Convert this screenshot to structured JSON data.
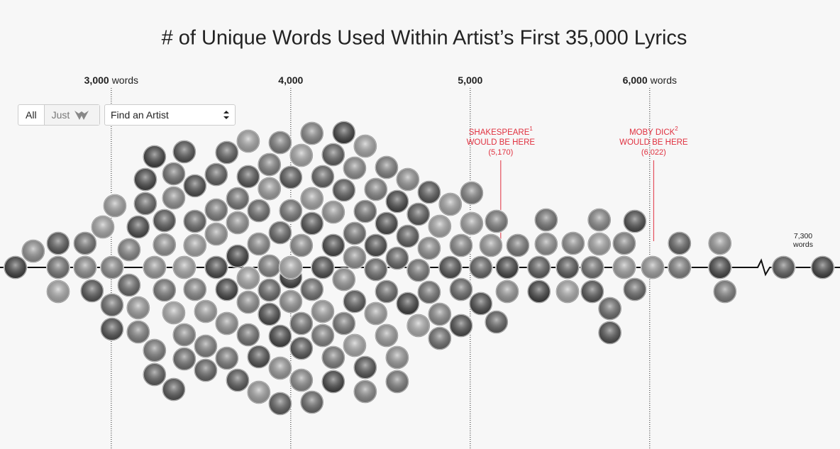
{
  "controls": {
    "all": "All",
    "just": "Just",
    "select": "Find an Artist"
  },
  "chart_data": {
    "type": "beeswarm",
    "title": "# of Unique Words Used Within Artist’s First 35,000 Lyrics",
    "xlim": [
      2380,
      6570
    ],
    "break_xlim": [
      7130,
      7470
    ],
    "xticks": [
      {
        "value": 3000,
        "label": "3,000",
        "unit": "words"
      },
      {
        "value": 4000,
        "label": "4,000"
      },
      {
        "value": 5000,
        "label": "5,000"
      },
      {
        "value": 6000,
        "label": "6,000",
        "unit": "words"
      }
    ],
    "annotations": [
      {
        "name": "SHAKESPEARE",
        "footnote": "1",
        "text": "WOULD BE HERE",
        "value": 5170,
        "value_label": "(5,170)"
      },
      {
        "name": "MOBY DICK",
        "footnote": "2",
        "text": "WOULD BE HERE",
        "value": 6022,
        "value_label": "(6,022)"
      }
    ],
    "break_annotation": {
      "value": 7300,
      "label": "7,300",
      "unit": "words"
    },
    "annotation_color": "#e0303f",
    "values": [
      2466,
      2565,
      2704,
      2704,
      2704,
      2854,
      2854,
      2893,
      2953,
      3004,
      3004,
      3004,
      3020,
      3099,
      3099,
      3150,
      3150,
      3150,
      3190,
      3190,
      3241,
      3241,
      3241,
      3241,
      3296,
      3296,
      3296,
      3348,
      3348,
      3348,
      3348,
      3407,
      3407,
      3407,
      3407,
      3466,
      3466,
      3466,
      3466,
      3526,
      3526,
      3526,
      3585,
      3585,
      3585,
      3585,
      3644,
      3644,
      3644,
      3644,
      3704,
      3704,
      3704,
      3704,
      3763,
      3763,
      3763,
      3763,
      3763,
      3822,
      3822,
      3822,
      3822,
      3881,
      3881,
      3881,
      3881,
      3881,
      3941,
      3941,
      3941,
      3941,
      3941,
      4000,
      4000,
      4000,
      4000,
      4000,
      4059,
      4059,
      4059,
      4059,
      4059,
      4118,
      4118,
      4118,
      4118,
      4118,
      4178,
      4178,
      4178,
      4178,
      4237,
      4237,
      4237,
      4237,
      4237,
      4296,
      4296,
      4296,
      4296,
      4356,
      4356,
      4356,
      4356,
      4356,
      4415,
      4415,
      4415,
      4415,
      4474,
      4474,
      4474,
      4474,
      4534,
      4534,
      4534,
      4534,
      4593,
      4593,
      4593,
      4593,
      4652,
      4652,
      4652,
      4711,
      4711,
      4711,
      4771,
      4771,
      4771,
      4830,
      4830,
      4830,
      4889,
      4889,
      4949,
      4949,
      4949,
      5008,
      5008,
      5059,
      5059,
      5115,
      5146,
      5146,
      5206,
      5206,
      5265,
      5383,
      5383,
      5423,
      5423,
      5542,
      5542,
      5573,
      5680,
      5680,
      5719,
      5719,
      5778,
      5778,
      5858,
      5858,
      5917,
      5917,
      6016,
      6166,
      6166,
      6391,
      6391,
      6419,
      7210,
      7390
    ]
  }
}
